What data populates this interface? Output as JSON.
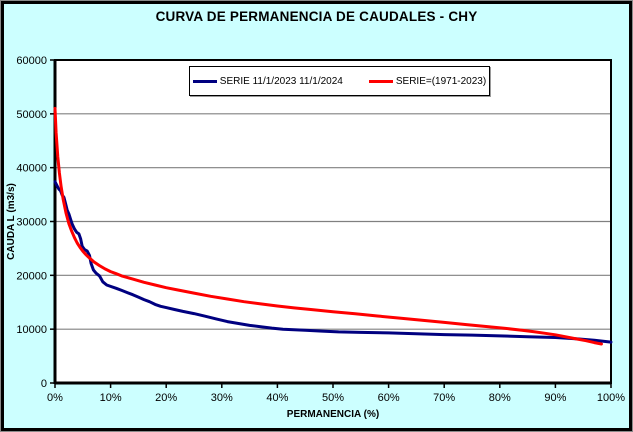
{
  "title": "CURVA DE PERMANENCIA DE CAUDALES - CHY",
  "colors": {
    "background": "#CCFFFF",
    "plot_background": "#FFFFFF",
    "gridline": "#808080",
    "axis": "#000000",
    "series1": "#000080",
    "series2": "#FF0000"
  },
  "legend": {
    "items": [
      {
        "label": "SERIE 11/1/2023 11/1/2024",
        "color": "#000080"
      },
      {
        "label": "SERIE=(1971-2023)",
        "color": "#FF0000"
      }
    ]
  },
  "chart_data": {
    "type": "line",
    "title": "CURVA DE PERMANENCIA DE CAUDALES - CHY",
    "xlabel": "PERMANENCIA (%)",
    "ylabel": "CAUDA L (m3/s)",
    "xlim": [
      0,
      100
    ],
    "ylim": [
      0,
      60000
    ],
    "x_tick_values": [
      0,
      10,
      20,
      30,
      40,
      50,
      60,
      70,
      80,
      90,
      100
    ],
    "x_tick_labels": [
      "0%",
      "10%",
      "20%",
      "30%",
      "40%",
      "50%",
      "60%",
      "70%",
      "80%",
      "90%",
      "100%"
    ],
    "y_tick_values": [
      0,
      10000,
      20000,
      30000,
      40000,
      50000,
      60000
    ],
    "y_tick_labels": [
      "0",
      "10000",
      "20000",
      "30000",
      "40000",
      "50000",
      "60000"
    ],
    "grid": true,
    "legend_position": "inside-top-center",
    "series": [
      {
        "name": "SERIE 11/1/2023 11/1/2024",
        "color": "#000080",
        "points": [
          [
            0,
            37400
          ],
          [
            0.4,
            36600
          ],
          [
            0.7,
            36000
          ],
          [
            1,
            35700
          ],
          [
            1.3,
            34900
          ],
          [
            1.6,
            34500
          ],
          [
            1.9,
            33300
          ],
          [
            2.2,
            32100
          ],
          [
            2.5,
            31400
          ],
          [
            2.8,
            30400
          ],
          [
            3.1,
            29500
          ],
          [
            3.5,
            28600
          ],
          [
            3.9,
            28000
          ],
          [
            4.3,
            27700
          ],
          [
            4.6,
            26800
          ],
          [
            4.9,
            25400
          ],
          [
            5.3,
            24800
          ],
          [
            5.8,
            24500
          ],
          [
            6.2,
            23700
          ],
          [
            6.5,
            22200
          ],
          [
            6.9,
            21000
          ],
          [
            7.4,
            20400
          ],
          [
            8,
            19900
          ],
          [
            8.6,
            18800
          ],
          [
            9.3,
            18200
          ],
          [
            10,
            17950
          ],
          [
            11,
            17600
          ],
          [
            12,
            17200
          ],
          [
            13,
            16800
          ],
          [
            14,
            16400
          ],
          [
            15,
            15950
          ],
          [
            16,
            15500
          ],
          [
            17,
            15100
          ],
          [
            18,
            14600
          ],
          [
            19,
            14250
          ],
          [
            20,
            14000
          ],
          [
            21.5,
            13650
          ],
          [
            23,
            13300
          ],
          [
            25,
            12900
          ],
          [
            27,
            12400
          ],
          [
            29,
            11900
          ],
          [
            31,
            11400
          ],
          [
            33,
            11050
          ],
          [
            35,
            10700
          ],
          [
            37,
            10450
          ],
          [
            39,
            10200
          ],
          [
            41,
            10000
          ],
          [
            43,
            9900
          ],
          [
            45,
            9800
          ],
          [
            48,
            9650
          ],
          [
            51,
            9500
          ],
          [
            55,
            9400
          ],
          [
            60,
            9300
          ],
          [
            65,
            9150
          ],
          [
            70,
            9000
          ],
          [
            75,
            8900
          ],
          [
            80,
            8750
          ],
          [
            85,
            8600
          ],
          [
            90,
            8450
          ],
          [
            94,
            8200
          ],
          [
            97,
            7950
          ],
          [
            100,
            7600
          ]
        ]
      },
      {
        "name": "SERIE=(1971-2023)",
        "color": "#FF0000",
        "points": [
          [
            0,
            51000
          ],
          [
            0.2,
            46500
          ],
          [
            0.5,
            42000
          ],
          [
            0.8,
            39000
          ],
          [
            1.1,
            36500
          ],
          [
            1.5,
            34000
          ],
          [
            2,
            31500
          ],
          [
            2.5,
            29600
          ],
          [
            3,
            28200
          ],
          [
            3.5,
            27000
          ],
          [
            4,
            26000
          ],
          [
            4.5,
            25200
          ],
          [
            5,
            24500
          ],
          [
            5.5,
            23900
          ],
          [
            6,
            23400
          ],
          [
            7,
            22500
          ],
          [
            8,
            21800
          ],
          [
            9,
            21200
          ],
          [
            10,
            20700
          ],
          [
            11,
            20300
          ],
          [
            12,
            19900
          ],
          [
            14,
            19300
          ],
          [
            16,
            18700
          ],
          [
            18,
            18200
          ],
          [
            20,
            17700
          ],
          [
            22,
            17300
          ],
          [
            25,
            16700
          ],
          [
            28,
            16100
          ],
          [
            31,
            15600
          ],
          [
            34,
            15100
          ],
          [
            37,
            14700
          ],
          [
            40,
            14300
          ],
          [
            43,
            13950
          ],
          [
            46,
            13650
          ],
          [
            50,
            13250
          ],
          [
            54,
            12850
          ],
          [
            58,
            12450
          ],
          [
            62,
            12050
          ],
          [
            66,
            11650
          ],
          [
            70,
            11250
          ],
          [
            74,
            10850
          ],
          [
            78,
            10450
          ],
          [
            81,
            10150
          ],
          [
            84,
            9800
          ],
          [
            86,
            9550
          ],
          [
            88,
            9250
          ],
          [
            90,
            8950
          ],
          [
            92,
            8550
          ],
          [
            94,
            8150
          ],
          [
            95.5,
            7850
          ],
          [
            97,
            7500
          ],
          [
            98.3,
            7250
          ]
        ]
      }
    ]
  }
}
